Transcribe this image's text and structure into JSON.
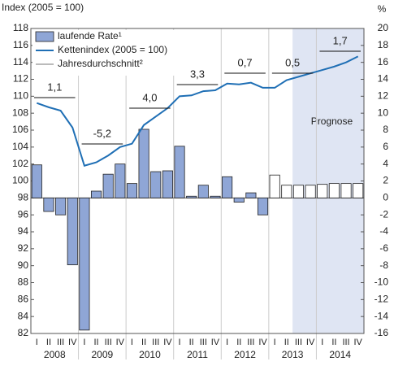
{
  "chart_data": {
    "type": "bar_line",
    "y_label": "Index (2005 = 100)",
    "y2_label": "%",
    "categories": [
      "I",
      "II",
      "III",
      "IV",
      "I",
      "II",
      "III",
      "IV",
      "I",
      "II",
      "III",
      "IV",
      "I",
      "II",
      "III",
      "IV",
      "I",
      "II",
      "III",
      "IV",
      "I",
      "II",
      "III",
      "IV",
      "I",
      "II",
      "III",
      "IV"
    ],
    "years": [
      "2008",
      "2009",
      "2010",
      "2011",
      "2012",
      "2013",
      "2014"
    ],
    "series": [
      {
        "name": "laufende Rate¹",
        "type": "bar",
        "axis": "y2",
        "color": "#8fa6d6",
        "bar_colors": [
          "#8fa6d6",
          "#8fa6d6",
          "#8fa6d6",
          "#8fa6d6",
          "#8fa6d6",
          "#8fa6d6",
          "#8fa6d6",
          "#8fa6d6",
          "#8fa6d6",
          "#8fa6d6",
          "#8fa6d6",
          "#8fa6d6",
          "#8fa6d6",
          "#8fa6d6",
          "#8fa6d6",
          "#8fa6d6",
          "#8fa6d6",
          "#8fa6d6",
          "#8fa6d6",
          "#8fa6d6",
          "#ffffff",
          "#ffffff",
          "#ffffff",
          "#ffffff",
          "#ffffff",
          "#ffffff",
          "#ffffff",
          "#ffffff"
        ],
        "values": [
          3.9,
          -1.6,
          -2.0,
          -7.9,
          -15.6,
          0.8,
          2.8,
          4.0,
          1.7,
          8.1,
          3.1,
          3.2,
          6.1,
          0.2,
          1.5,
          0.2,
          2.5,
          -0.5,
          0.6,
          -2.0,
          2.7,
          1.5,
          1.5,
          1.5,
          1.6,
          1.7,
          1.7,
          1.7
        ]
      },
      {
        "name": "Kettenindex (2005 = 100)",
        "type": "line",
        "color": "#1f6fb5",
        "values": [
          109.2,
          108.7,
          108.3,
          106.3,
          101.8,
          102.2,
          103.0,
          104.0,
          104.4,
          106.6,
          107.6,
          108.6,
          110.0,
          110.1,
          110.6,
          110.7,
          111.5,
          111.4,
          111.6,
          111.0,
          111.0,
          111.9,
          112.3,
          112.7,
          113.1,
          113.5,
          114.0,
          114.7
        ]
      },
      {
        "name": "Jahresdurchschnitt²",
        "type": "annual",
        "color": "#777777",
        "value_labels": [
          "1,1",
          "-5,2",
          "4,0",
          "3,3",
          "0,7",
          "0,5",
          "1,7"
        ]
      }
    ],
    "annotation": "Prognose",
    "ylim": [
      82,
      118
    ],
    "yticks": [
      82,
      84,
      86,
      88,
      90,
      92,
      94,
      96,
      98,
      100,
      102,
      104,
      106,
      108,
      110,
      112,
      114,
      116,
      118
    ],
    "y2lim": [
      -16,
      20
    ],
    "y2ticks": [
      -16,
      -14,
      -12,
      -10,
      -8,
      -6,
      -4,
      -2,
      0,
      2,
      4,
      6,
      8,
      10,
      12,
      14,
      16,
      18,
      20
    ]
  }
}
